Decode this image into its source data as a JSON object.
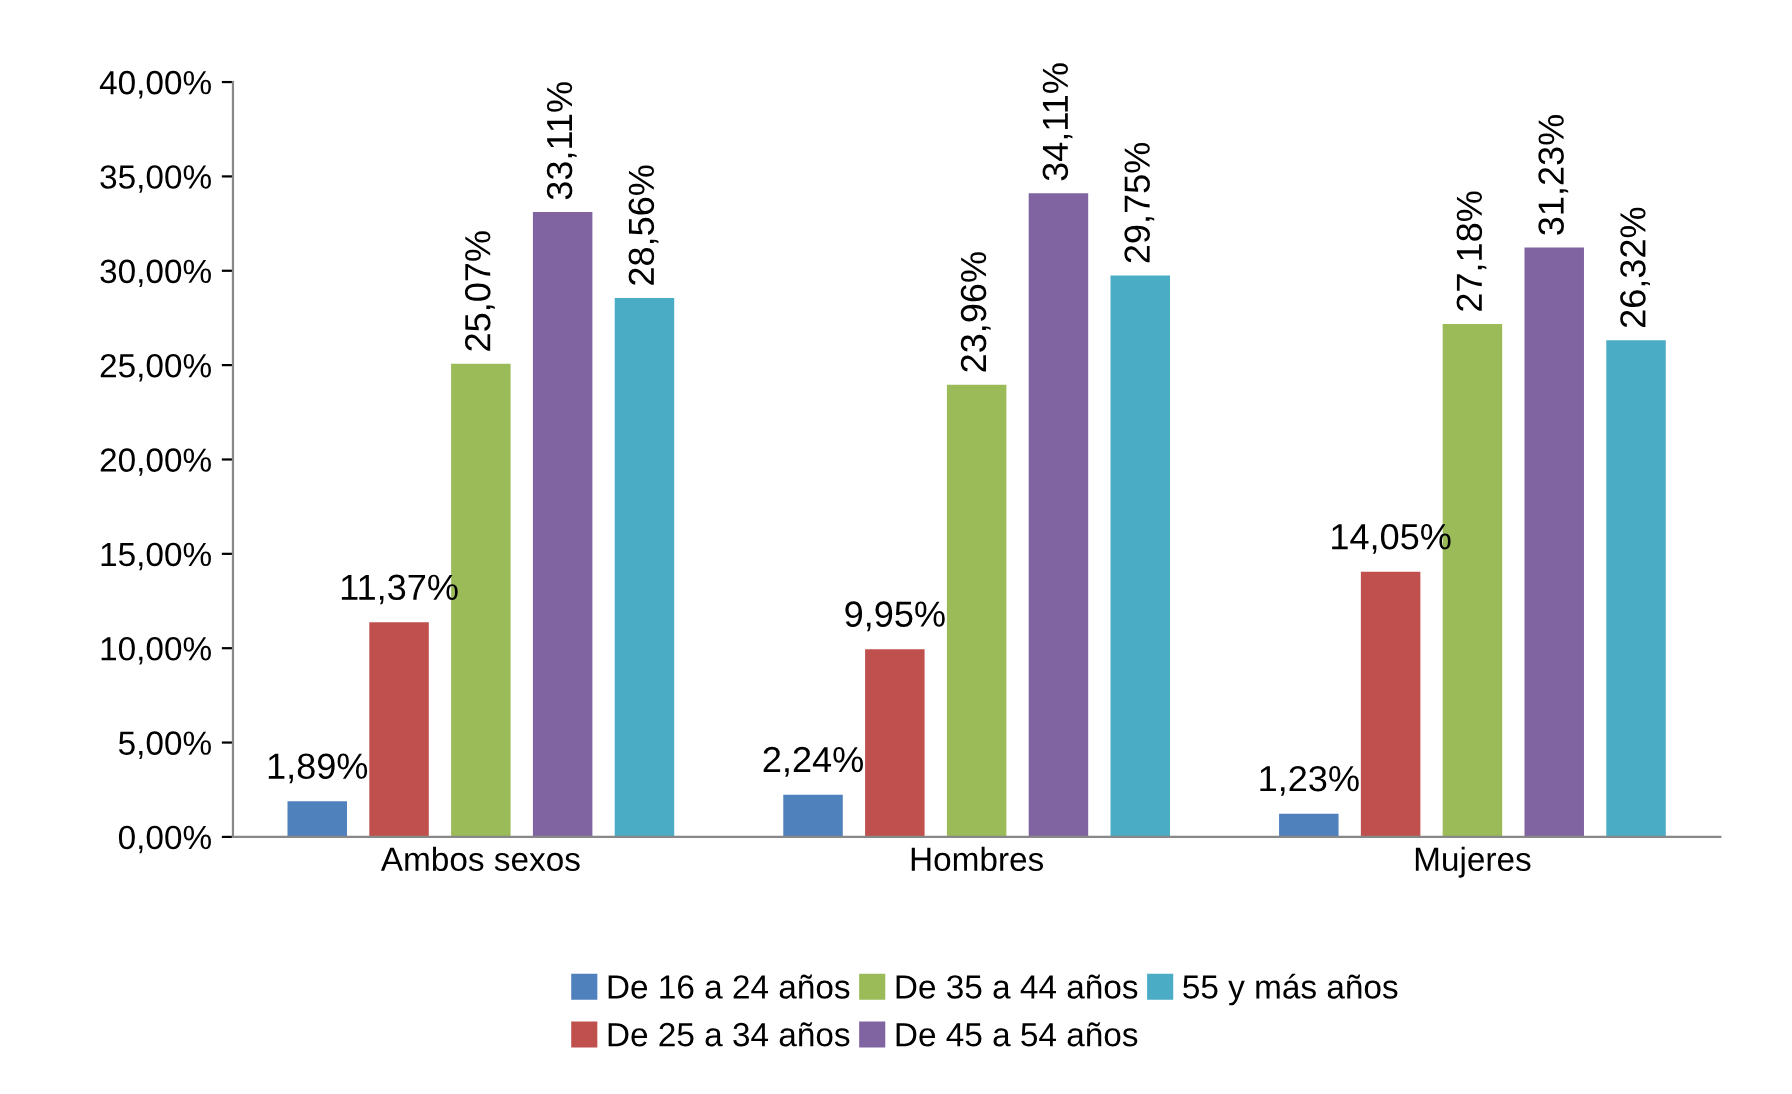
{
  "chart_data": {
    "type": "bar",
    "categories": [
      "Ambos sexos",
      "Hombres",
      "Mujeres"
    ],
    "series": [
      {
        "name": "De 16 a 24 años",
        "color": "#4f81bd",
        "values": [
          1.89,
          2.24,
          1.23
        ],
        "value_labels": [
          "1,89%",
          "2,24%",
          "1,23%"
        ]
      },
      {
        "name": "De 25 a 34 años",
        "color": "#c0504d",
        "values": [
          11.37,
          9.95,
          14.05
        ],
        "value_labels": [
          "11,37%",
          "9,95%",
          "14,05%"
        ]
      },
      {
        "name": "De 35 a 44 años",
        "color": "#9bbb59",
        "values": [
          25.07,
          23.96,
          27.18
        ],
        "value_labels": [
          "25,07%",
          "23,96%",
          "27,18%"
        ]
      },
      {
        "name": "De 45 a 54 años",
        "color": "#8064a2",
        "values": [
          33.11,
          34.11,
          31.23
        ],
        "value_labels": [
          "33,11%",
          "34,11%",
          "31,23%"
        ]
      },
      {
        "name": "55 y más años",
        "color": "#4bacc6",
        "values": [
          28.56,
          29.75,
          26.32
        ],
        "value_labels": [
          "28,56%",
          "29,75%",
          "26,32%"
        ]
      }
    ],
    "ylim": [
      0,
      40
    ],
    "yticks": [
      {
        "value": 0,
        "label": "0,00%"
      },
      {
        "value": 5,
        "label": "5,00%"
      },
      {
        "value": 10,
        "label": "10,00%"
      },
      {
        "value": 15,
        "label": "15,00%"
      },
      {
        "value": 20,
        "label": "20,00%"
      },
      {
        "value": 25,
        "label": "25,00%"
      },
      {
        "value": 30,
        "label": "30,00%"
      },
      {
        "value": 35,
        "label": "35,00%"
      },
      {
        "value": 40,
        "label": "40,00%"
      }
    ],
    "grid": false,
    "legend": "bottom"
  }
}
